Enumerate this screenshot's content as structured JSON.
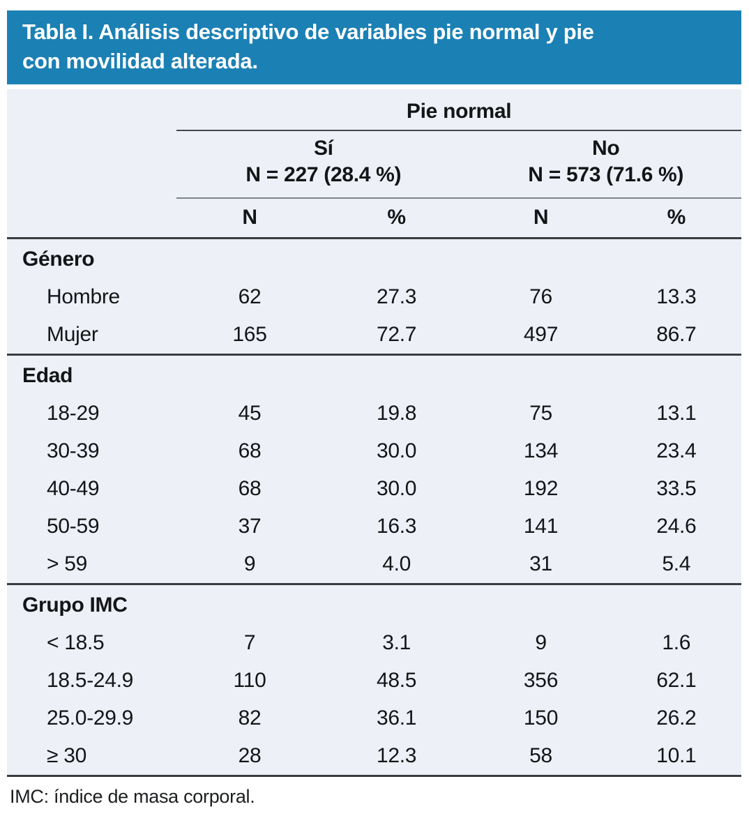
{
  "header": {
    "title_lines": [
      "Tabla I. Análisis descriptivo de variables pie normal y pie",
      "con movilidad alterada."
    ]
  },
  "table": {
    "top_header": "Pie normal",
    "groups": [
      {
        "label": "Sí",
        "count": "N = 227 (28.4 %)"
      },
      {
        "label": "No",
        "count": "N = 573 (71.6 %)"
      }
    ],
    "sub_columns": [
      "N",
      "%",
      "N",
      "%"
    ],
    "sections": [
      {
        "label": "Género",
        "rows": [
          {
            "label": "Hombre",
            "values": [
              "62",
              "27.3",
              "76",
              "13.3"
            ]
          },
          {
            "label": "Mujer",
            "values": [
              "165",
              "72.7",
              "497",
              "86.7"
            ]
          }
        ]
      },
      {
        "label": "Edad",
        "rows": [
          {
            "label": "18-29",
            "values": [
              "45",
              "19.8",
              "75",
              "13.1"
            ]
          },
          {
            "label": "30-39",
            "values": [
              "68",
              "30.0",
              "134",
              "23.4"
            ]
          },
          {
            "label": "40-49",
            "values": [
              "68",
              "30.0",
              "192",
              "33.5"
            ]
          },
          {
            "label": "50-59",
            "values": [
              "37",
              "16.3",
              "141",
              "24.6"
            ]
          },
          {
            "label": "> 59",
            "values": [
              "9",
              "4.0",
              "31",
              "5.4"
            ]
          }
        ]
      },
      {
        "label": "Grupo IMC",
        "rows": [
          {
            "label": "< 18.5",
            "values": [
              "7",
              "3.1",
              "9",
              "1.6"
            ]
          },
          {
            "label": "18.5-24.9",
            "values": [
              "110",
              "48.5",
              "356",
              "62.1"
            ]
          },
          {
            "label": "25.0-29.9",
            "values": [
              "82",
              "36.1",
              "150",
              "26.2"
            ]
          },
          {
            "label": "≥ 30",
            "values": [
              "28",
              "12.3",
              "58",
              "10.1"
            ]
          }
        ]
      }
    ]
  },
  "footnote": "IMC: índice de masa corporal.",
  "colors": {
    "accent_blue": "#1b80b4",
    "panel_bg": "#edf0f6",
    "rule_dark": "#3a3d40",
    "rule_mid": "#7e838a"
  }
}
